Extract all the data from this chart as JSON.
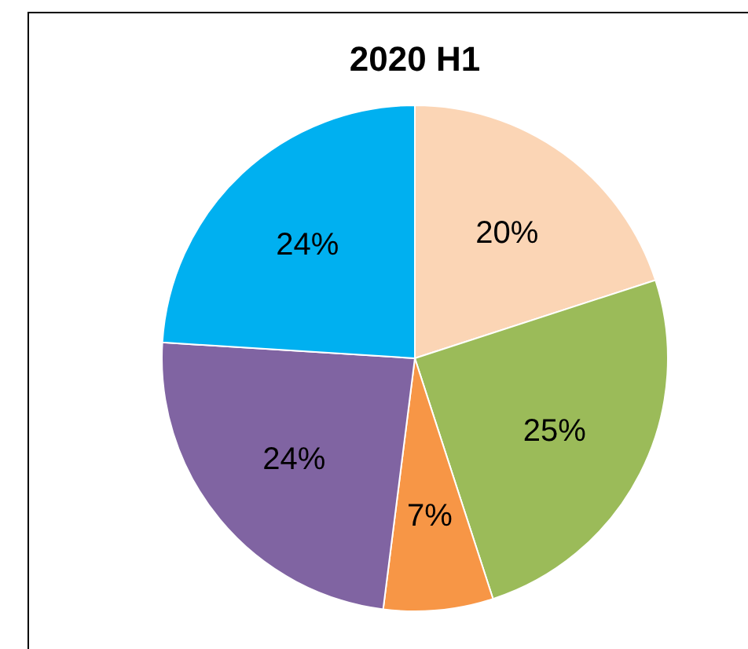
{
  "chart_data": {
    "type": "pie",
    "title": "2020 H1",
    "categories": [
      null,
      null,
      null,
      null,
      null
    ],
    "values": [
      20,
      25,
      7,
      24,
      24
    ],
    "colors": [
      "#fbd5b5",
      "#9bbb59",
      "#f79646",
      "#8064a2",
      "#00b0f0"
    ],
    "value_labels": [
      "20%",
      "25%",
      "7%",
      "24%",
      "24%"
    ]
  }
}
